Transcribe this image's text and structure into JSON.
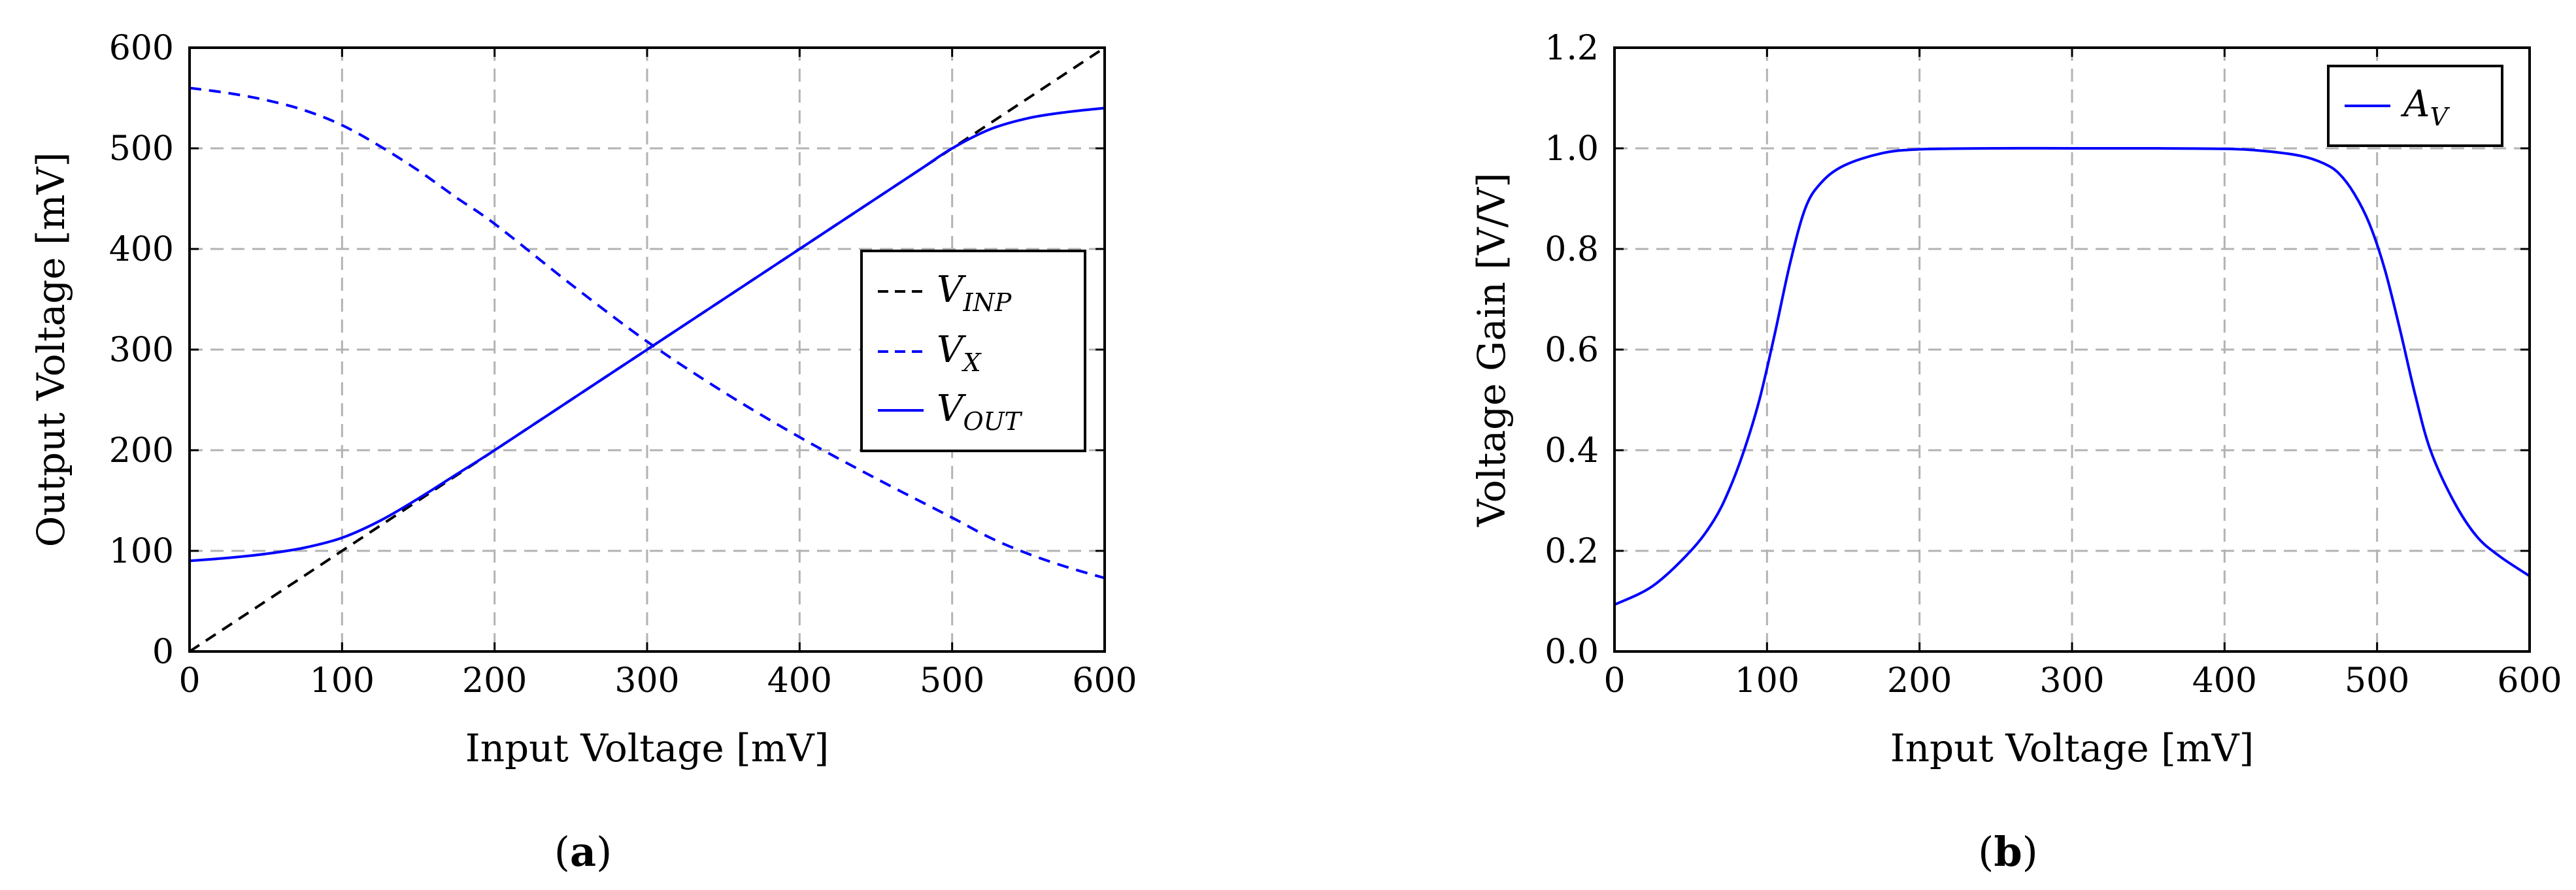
{
  "chart_data": [
    {
      "type": "line",
      "panel_label": "a",
      "xlabel": "Input Voltage [mV]",
      "ylabel": "Output Voltage [mV]",
      "xlim": [
        0,
        600
      ],
      "ylim": [
        0,
        600
      ],
      "xticks": [
        0,
        100,
        200,
        300,
        400,
        500,
        600
      ],
      "yticks": [
        0,
        100,
        200,
        300,
        400,
        500,
        600
      ],
      "grid": true,
      "legend_position": "center-right",
      "series": [
        {
          "name": "V_INP",
          "label_main": "V",
          "label_sub": "INP",
          "style": "dashed",
          "color": "#000000",
          "x": [
            0,
            100,
            200,
            300,
            400,
            500,
            600
          ],
          "y": [
            0,
            100,
            200,
            300,
            400,
            500,
            600
          ]
        },
        {
          "name": "V_X",
          "label_main": "V",
          "label_sub": "X",
          "style": "dashed",
          "color": "#0000ff",
          "x": [
            0,
            25,
            50,
            75,
            100,
            125,
            150,
            175,
            200,
            250,
            300,
            350,
            400,
            450,
            500,
            525,
            550,
            575,
            600
          ],
          "y": [
            560,
            555,
            548,
            538,
            523,
            502,
            478,
            451,
            425,
            365,
            308,
            258,
            213,
            172,
            133,
            113,
            97,
            84,
            73
          ]
        },
        {
          "name": "V_OUT",
          "label_main": "V",
          "label_sub": "OUT",
          "style": "solid",
          "color": "#0000ff",
          "x": [
            0,
            25,
            50,
            75,
            100,
            125,
            150,
            175,
            200,
            250,
            300,
            350,
            400,
            450,
            480,
            500,
            525,
            550,
            575,
            600
          ],
          "y": [
            90,
            93,
            97,
            103,
            113,
            130,
            152,
            176,
            200,
            250,
            300,
            350,
            400,
            450,
            480,
            500,
            519,
            530,
            536,
            540
          ]
        }
      ]
    },
    {
      "type": "line",
      "panel_label": "b",
      "xlabel": "Input Voltage [mV]",
      "ylabel": "Voltage Gain [V/V]",
      "xlim": [
        0,
        600
      ],
      "ylim": [
        0,
        1.2
      ],
      "xticks": [
        0,
        100,
        200,
        300,
        400,
        500,
        600
      ],
      "yticks": [
        0,
        0.2,
        0.4,
        0.6,
        0.8,
        1.0,
        1.2
      ],
      "ytick_labels": [
        "0.0",
        "0.2",
        "0.4",
        "0.6",
        "0.8",
        "1.0",
        "1.2"
      ],
      "grid": true,
      "legend_position": "top-right",
      "series": [
        {
          "name": "A_V",
          "label_main": "A",
          "label_sub": "V",
          "style": "solid",
          "color": "#0000ff",
          "x": [
            0,
            25,
            50,
            65,
            75,
            85,
            95,
            105,
            115,
            125,
            135,
            150,
            175,
            200,
            250,
            300,
            350,
            400,
            425,
            450,
            465,
            475,
            485,
            495,
            505,
            515,
            525,
            535,
            550,
            565,
            580,
            600
          ],
          "y": [
            0.093,
            0.13,
            0.2,
            0.26,
            0.32,
            0.4,
            0.5,
            0.63,
            0.77,
            0.88,
            0.93,
            0.965,
            0.99,
            0.998,
            1.0,
            1.0,
            1.0,
            0.999,
            0.995,
            0.985,
            0.97,
            0.95,
            0.91,
            0.85,
            0.76,
            0.64,
            0.51,
            0.4,
            0.3,
            0.23,
            0.19,
            0.15
          ]
        }
      ]
    }
  ]
}
